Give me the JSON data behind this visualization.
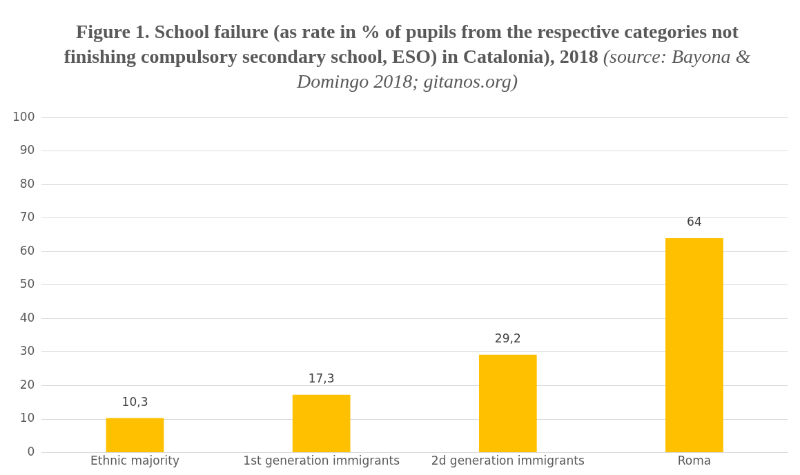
{
  "chart_data": {
    "type": "bar",
    "title": "Figure 1. School failure (as rate in % of pupils from the respective categories not finishing compulsory secondary school, ESO) in Catalonia), 2018",
    "subtitle": "(source: Bayona & Domingo 2018; gitanos.org)",
    "categories": [
      "Ethnic majority",
      "1st generation immigrants",
      "2d generation immigrants",
      "Roma"
    ],
    "values": [
      10.3,
      17.3,
      29.2,
      64
    ],
    "value_labels": [
      "10,3",
      "17,3",
      "29,2",
      "64"
    ],
    "color": "#ffc000",
    "ylim": [
      0,
      100
    ],
    "yticks": [
      0,
      10,
      20,
      30,
      40,
      50,
      60,
      70,
      80,
      90,
      100
    ],
    "grid": "y",
    "legend": false
  }
}
